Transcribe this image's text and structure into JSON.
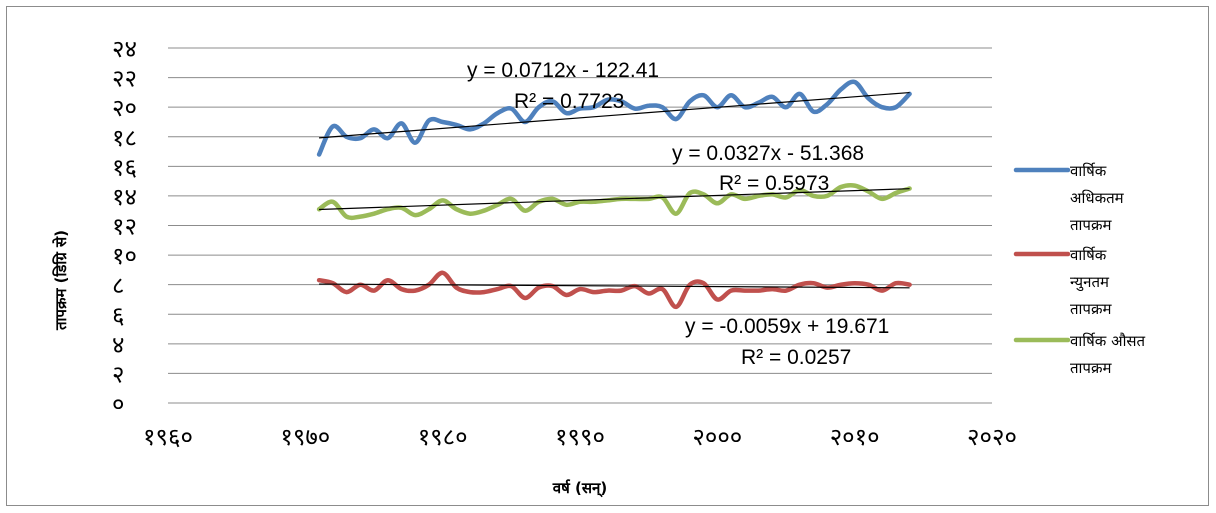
{
  "chart_data": {
    "type": "line",
    "xlabel": "वर्ष (सन्)",
    "ylabel": "तापक्रम (डिग्रि से)",
    "xlim": [
      1960,
      2020
    ],
    "ylim": [
      0,
      24
    ],
    "x_ticks": [
      1960,
      1970,
      1980,
      1990,
      2000,
      2010,
      2020
    ],
    "x_tick_labels": [
      "१९६०",
      "१९७०",
      "१९८०",
      "१९९०",
      "२०००",
      "२०१०",
      "२०२०"
    ],
    "y_ticks": [
      0,
      2,
      4,
      6,
      8,
      10,
      12,
      14,
      16,
      18,
      20,
      22,
      24
    ],
    "y_tick_labels": [
      "०",
      "२",
      "४",
      "६",
      "८",
      "१०",
      "१२",
      "१४",
      "१६",
      "१८",
      "२०",
      "२२",
      "२४"
    ],
    "grid": "horizontal",
    "legend_position": "right",
    "x": [
      1971,
      1972,
      1973,
      1974,
      1975,
      1976,
      1977,
      1978,
      1979,
      1980,
      1981,
      1982,
      1983,
      1984,
      1985,
      1986,
      1987,
      1988,
      1989,
      1990,
      1991,
      1992,
      1993,
      1994,
      1995,
      1996,
      1997,
      1998,
      1999,
      2000,
      2001,
      2002,
      2003,
      2004,
      2005,
      2006,
      2007,
      2008,
      2009,
      2010,
      2011,
      2012,
      2013,
      2014
    ],
    "series": [
      {
        "name": "वार्षिक अधिकतम तापक्रम",
        "color": "#4f81bd",
        "values": [
          16.8,
          18.7,
          18.0,
          17.9,
          18.5,
          17.9,
          18.9,
          17.6,
          19.1,
          19.0,
          18.8,
          18.5,
          18.9,
          19.6,
          19.9,
          19.0,
          20.0,
          20.4,
          19.6,
          19.9,
          20.0,
          20.5,
          20.4,
          19.9,
          20.1,
          20.0,
          19.2,
          20.4,
          20.8,
          20.0,
          20.8,
          20.0,
          20.3,
          20.7,
          20.0,
          20.9,
          19.7,
          20.2,
          21.2,
          21.7,
          20.6,
          20.0,
          20.0,
          20.9
        ]
      },
      {
        "name": "वार्षिक न्युनतम तापक्रम",
        "color": "#c0504d",
        "values": [
          8.3,
          8.1,
          7.5,
          8.0,
          7.6,
          8.3,
          7.7,
          7.6,
          8.0,
          8.8,
          7.8,
          7.5,
          7.5,
          7.7,
          7.9,
          7.1,
          7.8,
          7.9,
          7.3,
          7.7,
          7.5,
          7.6,
          7.6,
          7.9,
          7.4,
          7.7,
          6.5,
          8.0,
          8.1,
          7.0,
          7.6,
          7.6,
          7.6,
          7.7,
          7.6,
          8.0,
          8.1,
          7.8,
          8.0,
          8.1,
          8.0,
          7.6,
          8.1,
          8.0
        ]
      },
      {
        "name": "वार्षिक औसत तापक्रम",
        "color": "#9bbb59",
        "values": [
          13.1,
          13.6,
          12.6,
          12.6,
          12.8,
          13.1,
          13.2,
          12.7,
          13.1,
          13.7,
          13.1,
          12.8,
          13.0,
          13.4,
          13.8,
          13.0,
          13.6,
          13.8,
          13.4,
          13.6,
          13.6,
          13.7,
          13.8,
          13.8,
          13.8,
          13.9,
          12.8,
          14.2,
          14.1,
          13.5,
          14.1,
          13.8,
          14.0,
          14.1,
          13.9,
          14.4,
          14.0,
          14.0,
          14.6,
          14.7,
          14.3,
          13.8,
          14.2,
          14.5
        ]
      }
    ],
    "trendlines": [
      {
        "series": "वार्षिक अधिकतम तापक्रम",
        "slope": 0.0712,
        "intercept": -122.41,
        "equation": "y = 0.0712x - 122.41",
        "r2": "R² = 0.7723"
      },
      {
        "series": "वार्षिक औसत तापक्रम",
        "slope": 0.0327,
        "intercept": -51.368,
        "equation": "y = 0.0327x - 51.368",
        "r2": "R² = 0.5973"
      },
      {
        "series": "वार्षिक न्युनतम तापक्रम",
        "slope": -0.0059,
        "intercept": 19.671,
        "equation": "y = -0.0059x + 19.671",
        "r2": "R² = 0.0257"
      }
    ],
    "trendline_color": "#000000",
    "legend": [
      {
        "lines": [
          "वार्षिक",
          "अधिकतम",
          "तापक्रम"
        ],
        "color": "#4f81bd"
      },
      {
        "lines": [
          "वार्षिक",
          "न्युनतम",
          "तापक्रम"
        ],
        "color": "#c0504d"
      },
      {
        "lines": [
          "वार्षिक औसत",
          "तापक्रम"
        ],
        "color": "#9bbb59"
      }
    ]
  }
}
